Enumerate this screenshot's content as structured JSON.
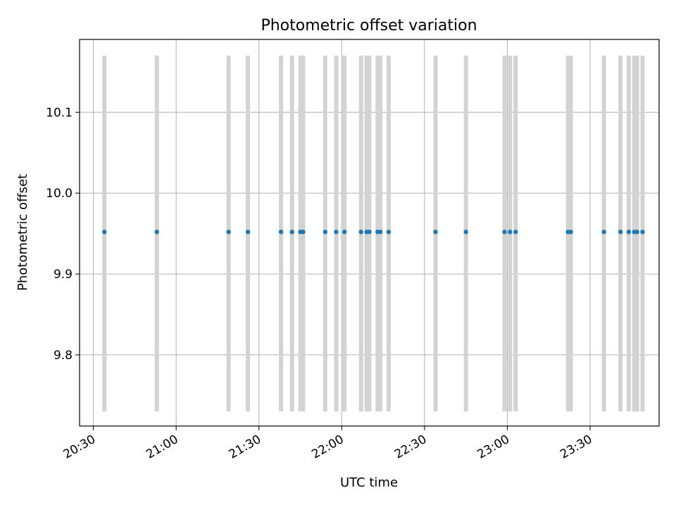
{
  "chart_data": {
    "type": "scatter",
    "title": "Photometric offset variation",
    "xlabel": "UTC time",
    "ylabel": "Photometric offset",
    "x_axis": "time (UTC, HH:MM)",
    "xlim": [
      "20:25",
      "23:55"
    ],
    "ylim": [
      9.712,
      10.19
    ],
    "grid": true,
    "x_ticks": [
      "20:30",
      "21:00",
      "21:30",
      "22:00",
      "22:30",
      "23:00",
      "23:30"
    ],
    "y_ticks": [
      9.8,
      9.9,
      10.0,
      10.1
    ],
    "colors": {
      "points": "#1f77b4",
      "bars": "#d3d3d3",
      "grid": "#b0b0b0",
      "axes": "#000000"
    },
    "series": [
      {
        "values": [
          {
            "x": "20:34",
            "y": 9.952,
            "ymin": 9.73,
            "ymax": 10.17
          },
          {
            "x": "20:53",
            "y": 9.952,
            "ymin": 9.73,
            "ymax": 10.17
          },
          {
            "x": "21:19",
            "y": 9.952,
            "ymin": 9.73,
            "ymax": 10.17
          },
          {
            "x": "21:26",
            "y": 9.952,
            "ymin": 9.73,
            "ymax": 10.17
          },
          {
            "x": "21:38",
            "y": 9.952,
            "ymin": 9.73,
            "ymax": 10.17
          },
          {
            "x": "21:42",
            "y": 9.952,
            "ymin": 9.73,
            "ymax": 10.17
          },
          {
            "x": "21:45",
            "y": 9.952,
            "ymin": 9.73,
            "ymax": 10.17
          },
          {
            "x": "21:46",
            "y": 9.952,
            "ymin": 9.73,
            "ymax": 10.17
          },
          {
            "x": "21:54",
            "y": 9.952,
            "ymin": 9.73,
            "ymax": 10.17
          },
          {
            "x": "21:58",
            "y": 9.952,
            "ymin": 9.73,
            "ymax": 10.17
          },
          {
            "x": "22:01",
            "y": 9.952,
            "ymin": 9.73,
            "ymax": 10.17
          },
          {
            "x": "22:07",
            "y": 9.952,
            "ymin": 9.73,
            "ymax": 10.17
          },
          {
            "x": "22:09",
            "y": 9.952,
            "ymin": 9.73,
            "ymax": 10.17
          },
          {
            "x": "22:10",
            "y": 9.952,
            "ymin": 9.73,
            "ymax": 10.17
          },
          {
            "x": "22:13",
            "y": 9.952,
            "ymin": 9.73,
            "ymax": 10.17
          },
          {
            "x": "22:14",
            "y": 9.952,
            "ymin": 9.73,
            "ymax": 10.17
          },
          {
            "x": "22:17",
            "y": 9.952,
            "ymin": 9.73,
            "ymax": 10.17
          },
          {
            "x": "22:34",
            "y": 9.952,
            "ymin": 9.73,
            "ymax": 10.17
          },
          {
            "x": "22:45",
            "y": 9.952,
            "ymin": 9.73,
            "ymax": 10.17
          },
          {
            "x": "22:59",
            "y": 9.952,
            "ymin": 9.73,
            "ymax": 10.17
          },
          {
            "x": "23:01",
            "y": 9.952,
            "ymin": 9.73,
            "ymax": 10.17
          },
          {
            "x": "23:03",
            "y": 9.952,
            "ymin": 9.73,
            "ymax": 10.17
          },
          {
            "x": "23:22",
            "y": 9.952,
            "ymin": 9.73,
            "ymax": 10.17
          },
          {
            "x": "23:23",
            "y": 9.952,
            "ymin": 9.73,
            "ymax": 10.17
          },
          {
            "x": "23:35",
            "y": 9.952,
            "ymin": 9.73,
            "ymax": 10.17
          },
          {
            "x": "23:41",
            "y": 9.952,
            "ymin": 9.73,
            "ymax": 10.17
          },
          {
            "x": "23:44",
            "y": 9.952,
            "ymin": 9.73,
            "ymax": 10.17
          },
          {
            "x": "23:46",
            "y": 9.952,
            "ymin": 9.73,
            "ymax": 10.17
          },
          {
            "x": "23:47",
            "y": 9.952,
            "ymin": 9.73,
            "ymax": 10.17
          },
          {
            "x": "23:49",
            "y": 9.952,
            "ymin": 9.73,
            "ymax": 10.17
          }
        ]
      }
    ]
  }
}
